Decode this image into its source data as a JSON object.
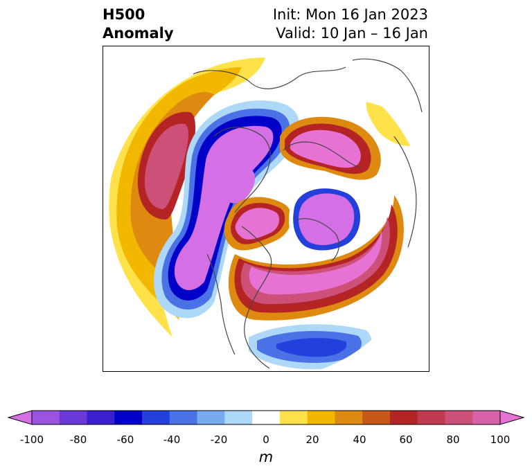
{
  "header": {
    "title_line1": "H500",
    "title_line2": "Anomaly",
    "init_label": "Init: Mon 16 Jan 2023",
    "valid_label": "Valid: 10 Jan – 16 Jan"
  },
  "colorbar": {
    "ticks": [
      "-100",
      "-80",
      "-60",
      "-40",
      "-20",
      "0",
      "20",
      "40",
      "60",
      "80",
      "100"
    ],
    "unit": "m",
    "colors": [
      "#d46fe6",
      "#9b54e0",
      "#6a39d8",
      "#3a1fd0",
      "#0000c8",
      "#2440dc",
      "#4a72e6",
      "#78aaf0",
      "#aed8f8",
      "#ffffff",
      "#ffe24a",
      "#f2b800",
      "#de8a10",
      "#c85818",
      "#b42424",
      "#c03a50",
      "#cc5078",
      "#d862a8",
      "#e672d4"
    ]
  },
  "map": {
    "projection": "north-polar-stereographic",
    "field": "500 hPa geopotential height anomaly"
  }
}
